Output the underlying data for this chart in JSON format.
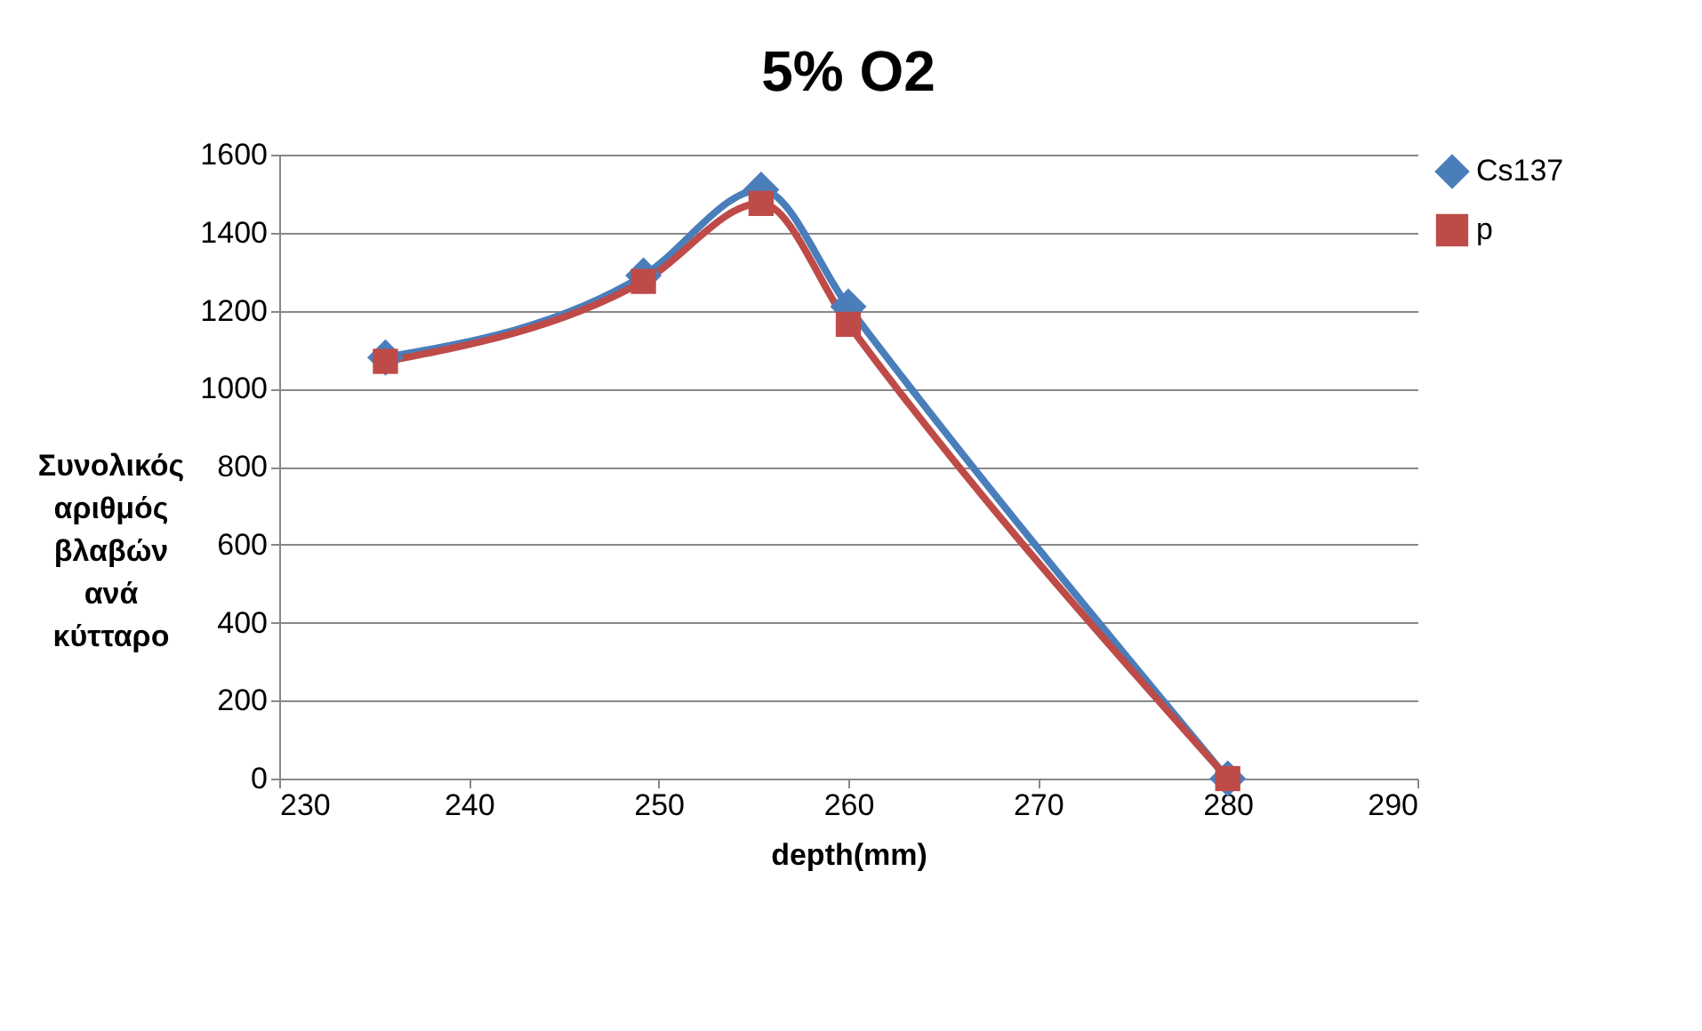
{
  "chart_data": {
    "type": "line",
    "title": "5% O2",
    "xlabel": "depth(mm)",
    "ylabel": "Συνολικός\nαριθμός\nβλαβών\nανά\nκύτταρο",
    "xlim": [
      230,
      290
    ],
    "xticks": [
      230,
      240,
      250,
      260,
      270,
      280,
      290
    ],
    "ylim": [
      0,
      1600
    ],
    "yticks": [
      0,
      200,
      400,
      600,
      800,
      1000,
      1200,
      1400,
      1600
    ],
    "grid": "y",
    "legend": "right",
    "line_style": "solid",
    "x": [
      235.6,
      249.2,
      255.4,
      260,
      280
    ],
    "series": [
      {
        "name": "Cs137",
        "color": "#4a7ebb",
        "marker": "diamond",
        "values": [
          1080,
          1290,
          1510,
          1210,
          0
        ]
      },
      {
        "name": "p",
        "color": "#be4b48",
        "marker": "square",
        "values": [
          1070,
          1275,
          1475,
          1165,
          0
        ]
      }
    ]
  }
}
